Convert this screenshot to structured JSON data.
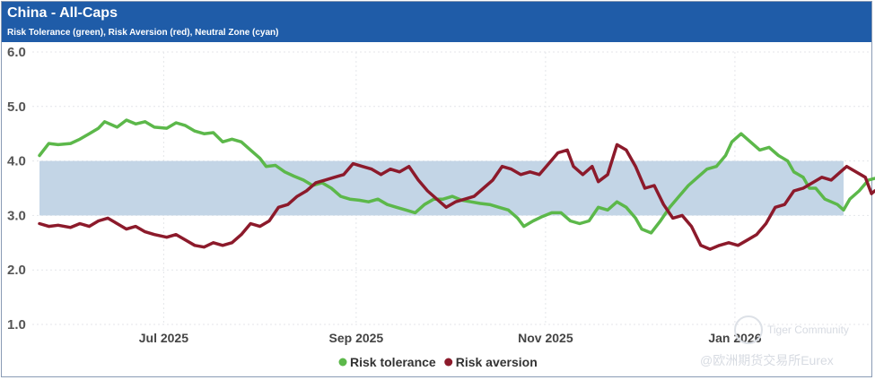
{
  "header": {
    "title": "China - All-Caps",
    "subtitle": "Risk Tolerance (green), Risk Aversion (red), Neutral Zone (cyan)"
  },
  "watermark": {
    "line1": "Tiger Community",
    "line2": "@欧洲期货交易所Eurex"
  },
  "colors": {
    "header_bg": "#1f5ca8",
    "risk_tolerance": "#5cb84a",
    "risk_aversion": "#8c1a2b",
    "neutral_zone": "#c3d5e6"
  },
  "chart_data": {
    "type": "line",
    "title": "China - All-Caps",
    "subtitle": "Risk Tolerance (green), Risk Aversion (red), Neutral Zone (cyan)",
    "x_start": "2025-05-22",
    "x_end": "2026-02-05",
    "x_tick_labels": [
      "Jul 2025",
      "Sep 2025",
      "Nov 2025",
      "Jan 2026"
    ],
    "x_tick_dates": [
      "2025-07-01",
      "2025-09-01",
      "2025-11-01",
      "2026-01-01"
    ],
    "y_ticks": [
      1.0,
      2.0,
      3.0,
      4.0,
      5.0,
      6.0
    ],
    "y_tick_labels": [
      "1.0",
      "2.0",
      "3.0",
      "4.0",
      "5.0",
      "6.0"
    ],
    "ylim": [
      1.0,
      6.0
    ],
    "grid": true,
    "legend_position": "bottom-center",
    "neutral_zone": [
      3.0,
      4.0
    ],
    "series": [
      {
        "name": "Risk tolerance",
        "color": "#5cb84a",
        "points": [
          [
            "2025-05-22",
            4.1
          ],
          [
            "2025-05-25",
            4.32
          ],
          [
            "2025-05-28",
            4.3
          ],
          [
            "2025-06-01",
            4.32
          ],
          [
            "2025-06-04",
            4.4
          ],
          [
            "2025-06-07",
            4.5
          ],
          [
            "2025-06-10",
            4.6
          ],
          [
            "2025-06-12",
            4.72
          ],
          [
            "2025-06-16",
            4.62
          ],
          [
            "2025-06-19",
            4.75
          ],
          [
            "2025-06-22",
            4.68
          ],
          [
            "2025-06-25",
            4.72
          ],
          [
            "2025-06-28",
            4.62
          ],
          [
            "2025-07-02",
            4.6
          ],
          [
            "2025-07-05",
            4.7
          ],
          [
            "2025-07-08",
            4.65
          ],
          [
            "2025-07-11",
            4.55
          ],
          [
            "2025-07-14",
            4.5
          ],
          [
            "2025-07-17",
            4.52
          ],
          [
            "2025-07-20",
            4.35
          ],
          [
            "2025-07-23",
            4.4
          ],
          [
            "2025-07-26",
            4.35
          ],
          [
            "2025-07-29",
            4.2
          ],
          [
            "2025-08-01",
            4.05
          ],
          [
            "2025-08-03",
            3.9
          ],
          [
            "2025-08-06",
            3.92
          ],
          [
            "2025-08-09",
            3.8
          ],
          [
            "2025-08-12",
            3.72
          ],
          [
            "2025-08-15",
            3.65
          ],
          [
            "2025-08-18",
            3.55
          ],
          [
            "2025-08-21",
            3.6
          ],
          [
            "2025-08-24",
            3.5
          ],
          [
            "2025-08-27",
            3.35
          ],
          [
            "2025-08-30",
            3.3
          ],
          [
            "2025-09-02",
            3.28
          ],
          [
            "2025-09-05",
            3.25
          ],
          [
            "2025-09-08",
            3.3
          ],
          [
            "2025-09-11",
            3.2
          ],
          [
            "2025-09-14",
            3.15
          ],
          [
            "2025-09-17",
            3.1
          ],
          [
            "2025-09-20",
            3.05
          ],
          [
            "2025-09-23",
            3.2
          ],
          [
            "2025-09-26",
            3.3
          ],
          [
            "2025-09-29",
            3.3
          ],
          [
            "2025-10-02",
            3.35
          ],
          [
            "2025-10-05",
            3.28
          ],
          [
            "2025-10-08",
            3.25
          ],
          [
            "2025-10-11",
            3.22
          ],
          [
            "2025-10-14",
            3.2
          ],
          [
            "2025-10-17",
            3.15
          ],
          [
            "2025-10-20",
            3.1
          ],
          [
            "2025-10-23",
            2.95
          ],
          [
            "2025-10-25",
            2.8
          ],
          [
            "2025-10-28",
            2.9
          ],
          [
            "2025-10-31",
            2.98
          ],
          [
            "2025-11-03",
            3.05
          ],
          [
            "2025-11-06",
            3.05
          ],
          [
            "2025-11-09",
            2.9
          ],
          [
            "2025-11-12",
            2.85
          ],
          [
            "2025-11-15",
            2.9
          ],
          [
            "2025-11-18",
            3.15
          ],
          [
            "2025-11-21",
            3.1
          ],
          [
            "2025-11-24",
            3.25
          ],
          [
            "2025-11-27",
            3.15
          ],
          [
            "2025-11-30",
            2.95
          ],
          [
            "2025-12-02",
            2.75
          ],
          [
            "2025-12-05",
            2.68
          ],
          [
            "2025-12-08",
            2.9
          ],
          [
            "2025-12-11",
            3.15
          ],
          [
            "2025-12-14",
            3.35
          ],
          [
            "2025-12-17",
            3.55
          ],
          [
            "2025-12-20",
            3.7
          ],
          [
            "2025-12-23",
            3.85
          ],
          [
            "2025-12-26",
            3.9
          ],
          [
            "2025-12-29",
            4.1
          ],
          [
            "2025-12-31",
            4.35
          ],
          [
            "2026-01-03",
            4.5
          ],
          [
            "2026-01-06",
            4.35
          ],
          [
            "2026-01-09",
            4.2
          ],
          [
            "2026-01-12",
            4.25
          ],
          [
            "2026-01-15",
            4.1
          ],
          [
            "2026-01-18",
            4.0
          ],
          [
            "2026-01-20",
            3.8
          ],
          [
            "2026-01-23",
            3.7
          ],
          [
            "2026-01-25",
            3.5
          ],
          [
            "2026-01-27",
            3.5
          ],
          [
            "2026-01-30",
            3.3
          ],
          [
            "2026-02-01",
            3.25
          ],
          [
            "2026-02-03",
            3.2
          ],
          [
            "2026-02-05",
            3.1
          ],
          [
            "2026-02-07",
            3.3
          ],
          [
            "2026-02-10",
            3.45
          ],
          [
            "2026-02-13",
            3.65
          ],
          [
            "2026-02-15",
            3.68
          ]
        ]
      },
      {
        "name": "Risk aversion",
        "color": "#8c1a2b",
        "points": [
          [
            "2025-05-22",
            2.85
          ],
          [
            "2025-05-25",
            2.8
          ],
          [
            "2025-05-28",
            2.82
          ],
          [
            "2025-06-01",
            2.78
          ],
          [
            "2025-06-04",
            2.85
          ],
          [
            "2025-06-07",
            2.8
          ],
          [
            "2025-06-10",
            2.9
          ],
          [
            "2025-06-13",
            2.95
          ],
          [
            "2025-06-16",
            2.85
          ],
          [
            "2025-06-19",
            2.75
          ],
          [
            "2025-06-22",
            2.8
          ],
          [
            "2025-06-25",
            2.7
          ],
          [
            "2025-06-28",
            2.65
          ],
          [
            "2025-07-02",
            2.6
          ],
          [
            "2025-07-05",
            2.65
          ],
          [
            "2025-07-08",
            2.55
          ],
          [
            "2025-07-11",
            2.45
          ],
          [
            "2025-07-14",
            2.42
          ],
          [
            "2025-07-17",
            2.5
          ],
          [
            "2025-07-20",
            2.45
          ],
          [
            "2025-07-23",
            2.5
          ],
          [
            "2025-07-26",
            2.65
          ],
          [
            "2025-07-29",
            2.85
          ],
          [
            "2025-08-01",
            2.8
          ],
          [
            "2025-08-04",
            2.9
          ],
          [
            "2025-08-07",
            3.15
          ],
          [
            "2025-08-10",
            3.2
          ],
          [
            "2025-08-13",
            3.35
          ],
          [
            "2025-08-16",
            3.45
          ],
          [
            "2025-08-19",
            3.6
          ],
          [
            "2025-08-22",
            3.65
          ],
          [
            "2025-08-25",
            3.7
          ],
          [
            "2025-08-28",
            3.75
          ],
          [
            "2025-08-31",
            3.95
          ],
          [
            "2025-09-03",
            3.9
          ],
          [
            "2025-09-06",
            3.85
          ],
          [
            "2025-09-09",
            3.75
          ],
          [
            "2025-09-12",
            3.85
          ],
          [
            "2025-09-15",
            3.8
          ],
          [
            "2025-09-18",
            3.9
          ],
          [
            "2025-09-21",
            3.65
          ],
          [
            "2025-09-24",
            3.45
          ],
          [
            "2025-09-27",
            3.3
          ],
          [
            "2025-09-30",
            3.15
          ],
          [
            "2025-10-03",
            3.25
          ],
          [
            "2025-10-06",
            3.3
          ],
          [
            "2025-10-09",
            3.35
          ],
          [
            "2025-10-12",
            3.5
          ],
          [
            "2025-10-15",
            3.65
          ],
          [
            "2025-10-18",
            3.9
          ],
          [
            "2025-10-21",
            3.85
          ],
          [
            "2025-10-24",
            3.75
          ],
          [
            "2025-10-27",
            3.8
          ],
          [
            "2025-10-30",
            3.75
          ],
          [
            "2025-11-02",
            3.95
          ],
          [
            "2025-11-05",
            4.15
          ],
          [
            "2025-11-08",
            4.2
          ],
          [
            "2025-11-10",
            3.9
          ],
          [
            "2025-11-13",
            3.75
          ],
          [
            "2025-11-16",
            3.9
          ],
          [
            "2025-11-18",
            3.62
          ],
          [
            "2025-11-21",
            3.75
          ],
          [
            "2025-11-24",
            4.3
          ],
          [
            "2025-11-27",
            4.2
          ],
          [
            "2025-11-30",
            3.9
          ],
          [
            "2025-12-03",
            3.5
          ],
          [
            "2025-12-06",
            3.55
          ],
          [
            "2025-12-09",
            3.2
          ],
          [
            "2025-12-12",
            2.95
          ],
          [
            "2025-12-15",
            3.0
          ],
          [
            "2025-12-18",
            2.8
          ],
          [
            "2025-12-21",
            2.45
          ],
          [
            "2025-12-24",
            2.38
          ],
          [
            "2025-12-27",
            2.45
          ],
          [
            "2025-12-30",
            2.5
          ],
          [
            "2026-01-02",
            2.45
          ],
          [
            "2026-01-05",
            2.55
          ],
          [
            "2026-01-08",
            2.65
          ],
          [
            "2026-01-11",
            2.85
          ],
          [
            "2026-01-14",
            3.15
          ],
          [
            "2026-01-17",
            3.2
          ],
          [
            "2026-01-20",
            3.45
          ],
          [
            "2026-01-23",
            3.5
          ],
          [
            "2026-01-26",
            3.6
          ],
          [
            "2026-01-29",
            3.7
          ],
          [
            "2026-02-01",
            3.65
          ],
          [
            "2026-02-04",
            3.8
          ],
          [
            "2026-02-06",
            3.9
          ],
          [
            "2026-02-09",
            3.8
          ],
          [
            "2026-02-12",
            3.7
          ],
          [
            "2026-02-14",
            3.4
          ],
          [
            "2026-02-15",
            3.45
          ]
        ]
      }
    ]
  }
}
